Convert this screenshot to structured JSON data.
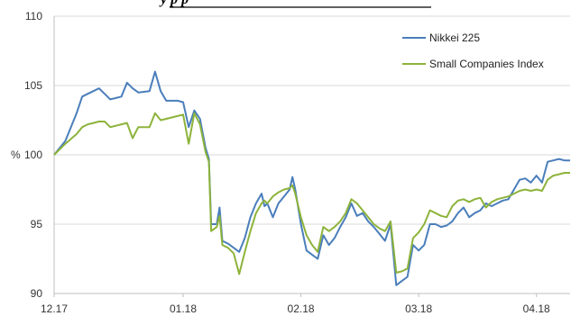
{
  "chart_data": {
    "type": "line",
    "title_fragment": "y p                   p",
    "y_unit_label": "%",
    "ylim": [
      90,
      110
    ],
    "yticks": [
      90,
      95,
      100,
      105,
      110
    ],
    "x_tick_labels": [
      {
        "label": "12.17",
        "x": 0
      },
      {
        "label": "01.18",
        "x": 23
      },
      {
        "label": "02.18",
        "x": 44
      },
      {
        "label": "03.18",
        "x": 65
      },
      {
        "label": "04.18",
        "x": 86
      }
    ],
    "xlim": [
      0,
      88
    ],
    "grid": "horizontal",
    "legend_position": "top-right",
    "series": [
      {
        "name": "Nikkei 225",
        "color": "#4a7ebb",
        "points": [
          [
            0,
            100.0
          ],
          [
            2,
            101.0
          ],
          [
            4,
            103.0
          ],
          [
            5,
            104.2
          ],
          [
            6,
            104.4
          ],
          [
            7,
            104.6
          ],
          [
            8,
            104.8
          ],
          [
            9,
            104.4
          ],
          [
            10,
            104.0
          ],
          [
            11,
            104.1
          ],
          [
            12,
            104.2
          ],
          [
            13,
            105.2
          ],
          [
            14,
            104.8
          ],
          [
            15,
            104.5
          ],
          [
            17,
            104.6
          ],
          [
            18,
            106.0
          ],
          [
            19,
            104.6
          ],
          [
            20,
            103.9
          ],
          [
            22,
            103.9
          ],
          [
            23,
            103.8
          ],
          [
            24,
            102.0
          ],
          [
            25,
            103.2
          ],
          [
            26,
            102.6
          ],
          [
            27,
            100.5
          ],
          [
            27.6,
            99.7
          ],
          [
            28,
            95.0
          ],
          [
            29,
            95.0
          ],
          [
            29.5,
            96.2
          ],
          [
            30,
            93.8
          ],
          [
            31,
            93.6
          ],
          [
            32,
            93.3
          ],
          [
            33,
            93.0
          ],
          [
            34,
            94.0
          ],
          [
            35,
            95.5
          ],
          [
            36,
            96.5
          ],
          [
            37,
            97.2
          ],
          [
            37.5,
            96.3
          ],
          [
            38,
            96.5
          ],
          [
            39,
            95.5
          ],
          [
            40,
            96.5
          ],
          [
            41,
            97.0
          ],
          [
            42,
            97.5
          ],
          [
            42.5,
            98.4
          ],
          [
            43,
            97.5
          ],
          [
            44,
            95.0
          ],
          [
            45,
            93.1
          ],
          [
            46,
            92.8
          ],
          [
            47,
            92.5
          ],
          [
            48,
            94.2
          ],
          [
            49,
            93.5
          ],
          [
            50,
            94.0
          ],
          [
            51,
            94.8
          ],
          [
            52,
            95.5
          ],
          [
            53,
            96.5
          ],
          [
            54,
            95.6
          ],
          [
            55,
            95.8
          ],
          [
            56,
            95.2
          ],
          [
            57,
            94.8
          ],
          [
            58,
            94.3
          ],
          [
            59,
            93.8
          ],
          [
            60,
            95.0
          ],
          [
            61,
            90.6
          ],
          [
            62,
            90.9
          ],
          [
            63,
            91.2
          ],
          [
            64,
            93.5
          ],
          [
            65,
            93.1
          ],
          [
            66,
            93.5
          ],
          [
            67,
            95.0
          ],
          [
            68,
            95.0
          ],
          [
            69,
            94.8
          ],
          [
            70,
            94.9
          ],
          [
            71,
            95.2
          ],
          [
            72,
            95.8
          ],
          [
            73,
            96.2
          ],
          [
            74,
            95.5
          ],
          [
            75,
            95.8
          ],
          [
            76,
            96.0
          ],
          [
            77,
            96.5
          ],
          [
            78,
            96.3
          ],
          [
            79,
            96.5
          ],
          [
            80,
            96.7
          ],
          [
            81,
            96.8
          ],
          [
            82,
            97.5
          ],
          [
            83,
            98.2
          ],
          [
            84,
            98.3
          ],
          [
            85,
            98.0
          ],
          [
            86,
            98.5
          ],
          [
            87,
            98.0
          ],
          [
            88,
            99.5
          ],
          [
            89,
            99.6
          ],
          [
            90,
            99.7
          ],
          [
            91,
            99.6
          ],
          [
            92,
            99.6
          ]
        ]
      },
      {
        "name": "Small Companies Index",
        "color": "#8db33b",
        "points": [
          [
            0,
            100.0
          ],
          [
            2,
            100.8
          ],
          [
            4,
            101.5
          ],
          [
            5,
            102.0
          ],
          [
            6,
            102.2
          ],
          [
            7,
            102.3
          ],
          [
            8,
            102.4
          ],
          [
            9,
            102.4
          ],
          [
            10,
            102.0
          ],
          [
            11,
            102.1
          ],
          [
            12,
            102.2
          ],
          [
            13,
            102.3
          ],
          [
            14,
            101.2
          ],
          [
            15,
            102.0
          ],
          [
            17,
            102.0
          ],
          [
            18,
            103.0
          ],
          [
            19,
            102.5
          ],
          [
            20,
            102.6
          ],
          [
            22,
            102.8
          ],
          [
            23,
            102.9
          ],
          [
            24,
            100.8
          ],
          [
            25,
            103.0
          ],
          [
            26,
            102.2
          ],
          [
            27,
            100.2
          ],
          [
            27.6,
            99.5
          ],
          [
            28,
            94.5
          ],
          [
            29,
            94.8
          ],
          [
            29.5,
            95.6
          ],
          [
            30,
            93.5
          ],
          [
            31,
            93.3
          ],
          [
            32,
            92.9
          ],
          [
            33,
            91.4
          ],
          [
            34,
            93.0
          ],
          [
            35,
            94.5
          ],
          [
            36,
            95.8
          ],
          [
            37,
            96.5
          ],
          [
            37.5,
            96.7
          ],
          [
            38,
            96.5
          ],
          [
            39,
            97.0
          ],
          [
            40,
            97.3
          ],
          [
            41,
            97.5
          ],
          [
            42,
            97.6
          ],
          [
            42.5,
            97.8
          ],
          [
            43,
            97.2
          ],
          [
            44,
            95.5
          ],
          [
            45,
            94.2
          ],
          [
            46,
            93.5
          ],
          [
            47,
            93.0
          ],
          [
            48,
            94.8
          ],
          [
            49,
            94.5
          ],
          [
            50,
            94.8
          ],
          [
            51,
            95.2
          ],
          [
            52,
            95.8
          ],
          [
            53,
            96.8
          ],
          [
            54,
            96.5
          ],
          [
            55,
            96.0
          ],
          [
            56,
            95.5
          ],
          [
            57,
            95.0
          ],
          [
            58,
            94.7
          ],
          [
            59,
            94.5
          ],
          [
            60,
            95.2
          ],
          [
            61,
            91.5
          ],
          [
            62,
            91.6
          ],
          [
            63,
            91.8
          ],
          [
            64,
            94.0
          ],
          [
            65,
            94.4
          ],
          [
            66,
            95.0
          ],
          [
            67,
            96.0
          ],
          [
            68,
            95.8
          ],
          [
            69,
            95.6
          ],
          [
            70,
            95.5
          ],
          [
            71,
            96.3
          ],
          [
            72,
            96.7
          ],
          [
            73,
            96.8
          ],
          [
            74,
            96.6
          ],
          [
            75,
            96.8
          ],
          [
            76,
            96.9
          ],
          [
            77,
            96.2
          ],
          [
            78,
            96.6
          ],
          [
            79,
            96.8
          ],
          [
            80,
            96.9
          ],
          [
            81,
            97.0
          ],
          [
            82,
            97.2
          ],
          [
            83,
            97.4
          ],
          [
            84,
            97.5
          ],
          [
            85,
            97.4
          ],
          [
            86,
            97.5
          ],
          [
            87,
            97.4
          ],
          [
            88,
            98.2
          ],
          [
            89,
            98.5
          ],
          [
            90,
            98.6
          ],
          [
            91,
            98.7
          ],
          [
            92,
            98.7
          ]
        ]
      }
    ]
  }
}
